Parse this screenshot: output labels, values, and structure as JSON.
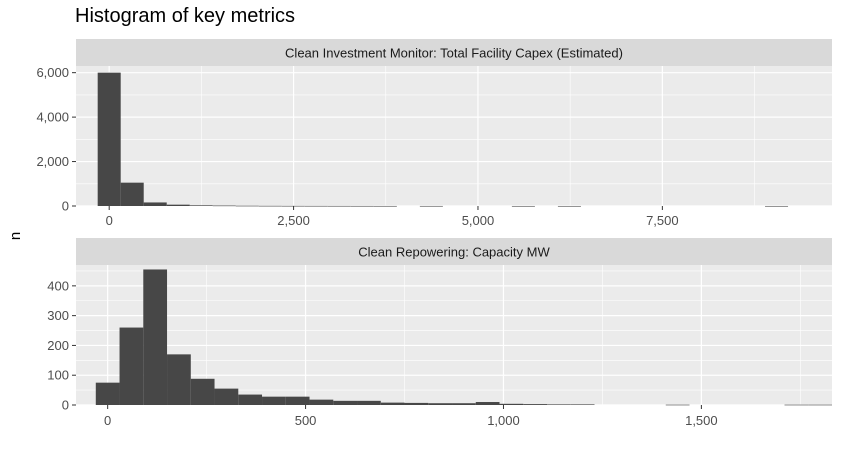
{
  "title": "Histogram of key metrics",
  "ylabel": "n",
  "colors": {
    "bar": "#474747",
    "panel_bg": "#ebebeb",
    "strip_bg": "#d9d9d9",
    "grid": "#ffffff",
    "tick_text": "#4d4d4d"
  },
  "chart_data": [
    {
      "type": "bar",
      "panel": "Clean Investment Monitor: Total Facility Capex (Estimated)",
      "bin_width": 312,
      "bins": [
        {
          "x0": -156,
          "x1": 156,
          "count": 6000
        },
        {
          "x0": 156,
          "x1": 468,
          "count": 1050
        },
        {
          "x0": 468,
          "x1": 780,
          "count": 160
        },
        {
          "x0": 780,
          "x1": 1092,
          "count": 60
        },
        {
          "x0": 1092,
          "x1": 1404,
          "count": 30
        },
        {
          "x0": 1404,
          "x1": 1716,
          "count": 20
        },
        {
          "x0": 1716,
          "x1": 2028,
          "count": 12
        },
        {
          "x0": 2028,
          "x1": 2340,
          "count": 8
        },
        {
          "x0": 2340,
          "x1": 2652,
          "count": 6
        },
        {
          "x0": 2652,
          "x1": 2964,
          "count": 5
        },
        {
          "x0": 2964,
          "x1": 3276,
          "count": 4
        },
        {
          "x0": 3276,
          "x1": 3588,
          "count": 3
        },
        {
          "x0": 3588,
          "x1": 3900,
          "count": 2
        },
        {
          "x0": 4212,
          "x1": 4524,
          "count": 2
        },
        {
          "x0": 5460,
          "x1": 5772,
          "count": 1
        },
        {
          "x0": 6084,
          "x1": 6396,
          "count": 1
        },
        {
          "x0": 8892,
          "x1": 9204,
          "count": 1
        }
      ],
      "xlim": [
        -450,
        9800
      ],
      "ylim": [
        0,
        6300
      ],
      "xticks": [
        0,
        2500,
        5000,
        7500
      ],
      "xtick_labels": [
        "0",
        "2,500",
        "5,000",
        "7,500"
      ],
      "yticks": [
        0,
        2000,
        4000,
        6000
      ],
      "ytick_labels": [
        "0",
        "2,000",
        "4,000",
        "6,000"
      ],
      "grid": true
    },
    {
      "type": "bar",
      "panel": "Clean Repowering: Capacity MW",
      "bin_width": 60,
      "bins": [
        {
          "x0": -30,
          "x1": 30,
          "count": 75
        },
        {
          "x0": 30,
          "x1": 90,
          "count": 260
        },
        {
          "x0": 90,
          "x1": 150,
          "count": 455
        },
        {
          "x0": 150,
          "x1": 210,
          "count": 170
        },
        {
          "x0": 210,
          "x1": 270,
          "count": 88
        },
        {
          "x0": 270,
          "x1": 330,
          "count": 55
        },
        {
          "x0": 330,
          "x1": 390,
          "count": 35
        },
        {
          "x0": 390,
          "x1": 450,
          "count": 28
        },
        {
          "x0": 450,
          "x1": 510,
          "count": 28
        },
        {
          "x0": 510,
          "x1": 570,
          "count": 18
        },
        {
          "x0": 570,
          "x1": 630,
          "count": 14
        },
        {
          "x0": 630,
          "x1": 690,
          "count": 14
        },
        {
          "x0": 690,
          "x1": 750,
          "count": 8
        },
        {
          "x0": 750,
          "x1": 810,
          "count": 7
        },
        {
          "x0": 810,
          "x1": 870,
          "count": 6
        },
        {
          "x0": 870,
          "x1": 930,
          "count": 6
        },
        {
          "x0": 930,
          "x1": 990,
          "count": 10
        },
        {
          "x0": 990,
          "x1": 1050,
          "count": 4
        },
        {
          "x0": 1050,
          "x1": 1110,
          "count": 3
        },
        {
          "x0": 1110,
          "x1": 1170,
          "count": 2
        },
        {
          "x0": 1170,
          "x1": 1230,
          "count": 2
        },
        {
          "x0": 1410,
          "x1": 1470,
          "count": 1
        },
        {
          "x0": 1710,
          "x1": 1770,
          "count": 1
        },
        {
          "x0": 1770,
          "x1": 1830,
          "count": 1
        }
      ],
      "xlim": [
        -80,
        1830
      ],
      "ylim": [
        0,
        470
      ],
      "xticks": [
        0,
        500,
        1000,
        1500
      ],
      "xtick_labels": [
        "0",
        "500",
        "1,000",
        "1,500"
      ],
      "yticks": [
        0,
        100,
        200,
        300,
        400
      ],
      "ytick_labels": [
        "0",
        "100",
        "200",
        "300",
        "400"
      ],
      "grid": true
    }
  ]
}
